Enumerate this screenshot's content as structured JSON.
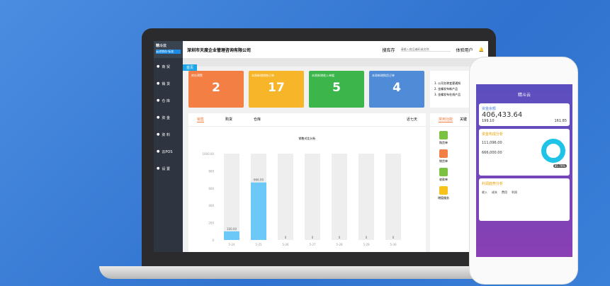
{
  "app": {
    "company": "深圳市天度企业管理咨询有限公司",
    "search_scope": "搜库存",
    "search_placeholder": "请输入商品编码或名称",
    "user": "体验用户",
    "tab": "首页",
    "logo": "精斗云",
    "logo_sub": "云进销存·标准"
  },
  "sidebar": {
    "items": [
      {
        "label": "商 贸",
        "icon": "cart-icon"
      },
      {
        "label": "销 货",
        "icon": "sale-icon"
      },
      {
        "label": "仓 库",
        "icon": "warehouse-icon"
      },
      {
        "label": "资 金",
        "icon": "money-icon"
      },
      {
        "label": "资 料",
        "icon": "pen-icon"
      },
      {
        "label": "云POS",
        "icon": "pos-icon"
      },
      {
        "label": "设 置",
        "icon": "gear-icon"
      }
    ]
  },
  "cards": [
    {
      "title": "库存预警",
      "value": "2",
      "color": "#f47f45"
    },
    {
      "title": "本周新增销售订单",
      "value": "17",
      "color": "#f7b52a"
    },
    {
      "title": "本周新增收入单据",
      "value": "5",
      "color": "#3cb54a"
    },
    {
      "title": "本周新增购货订单",
      "value": "4",
      "color": "#4f8bd6"
    }
  ],
  "notices": [
    "1. 公司名称变更通知",
    "2. 金蝶发布新产品",
    "3. 金蝶发布在线产品"
  ],
  "chart_tabs": [
    "销售",
    "购货",
    "仓库"
  ],
  "range": "近七天",
  "chart_data": {
    "type": "bar",
    "title": "销售对比分析",
    "categories": [
      "5-24",
      "5-25",
      "5-26",
      "5-27",
      "5-28",
      "5-29",
      "5-30"
    ],
    "values": [
      100,
      666,
      0,
      0,
      0,
      0,
      0
    ],
    "value_labels": [
      "100.00",
      "666.00",
      "0",
      "0",
      "0",
      "0",
      "0"
    ],
    "yticks": [
      "0",
      "200",
      "400",
      "600",
      "800",
      "1000.00"
    ],
    "ylim": [
      0,
      1000
    ],
    "color": "#6cc8f7"
  },
  "functions": {
    "tabs": [
      "常用功能",
      "关键"
    ],
    "items": [
      {
        "label": "购货单",
        "color": "#7cc242"
      },
      {
        "label": "销货单",
        "color": "#f47f45"
      },
      {
        "label": "收款单",
        "color": "#7cc242"
      },
      {
        "label": "增值服务",
        "color": "#f7c21a"
      }
    ]
  },
  "phone": {
    "title": "精斗云",
    "s1": "资金余额",
    "balance": "406,433.64",
    "a1": "199.10",
    "a2": "161.85",
    "s2": "资金构成分析",
    "v1": "111,096.00",
    "v2": "666,000.00",
    "pct": "85.76%",
    "s3": "利润趋势分析",
    "legend": [
      "收入",
      "成本",
      "费用",
      "利润"
    ]
  }
}
